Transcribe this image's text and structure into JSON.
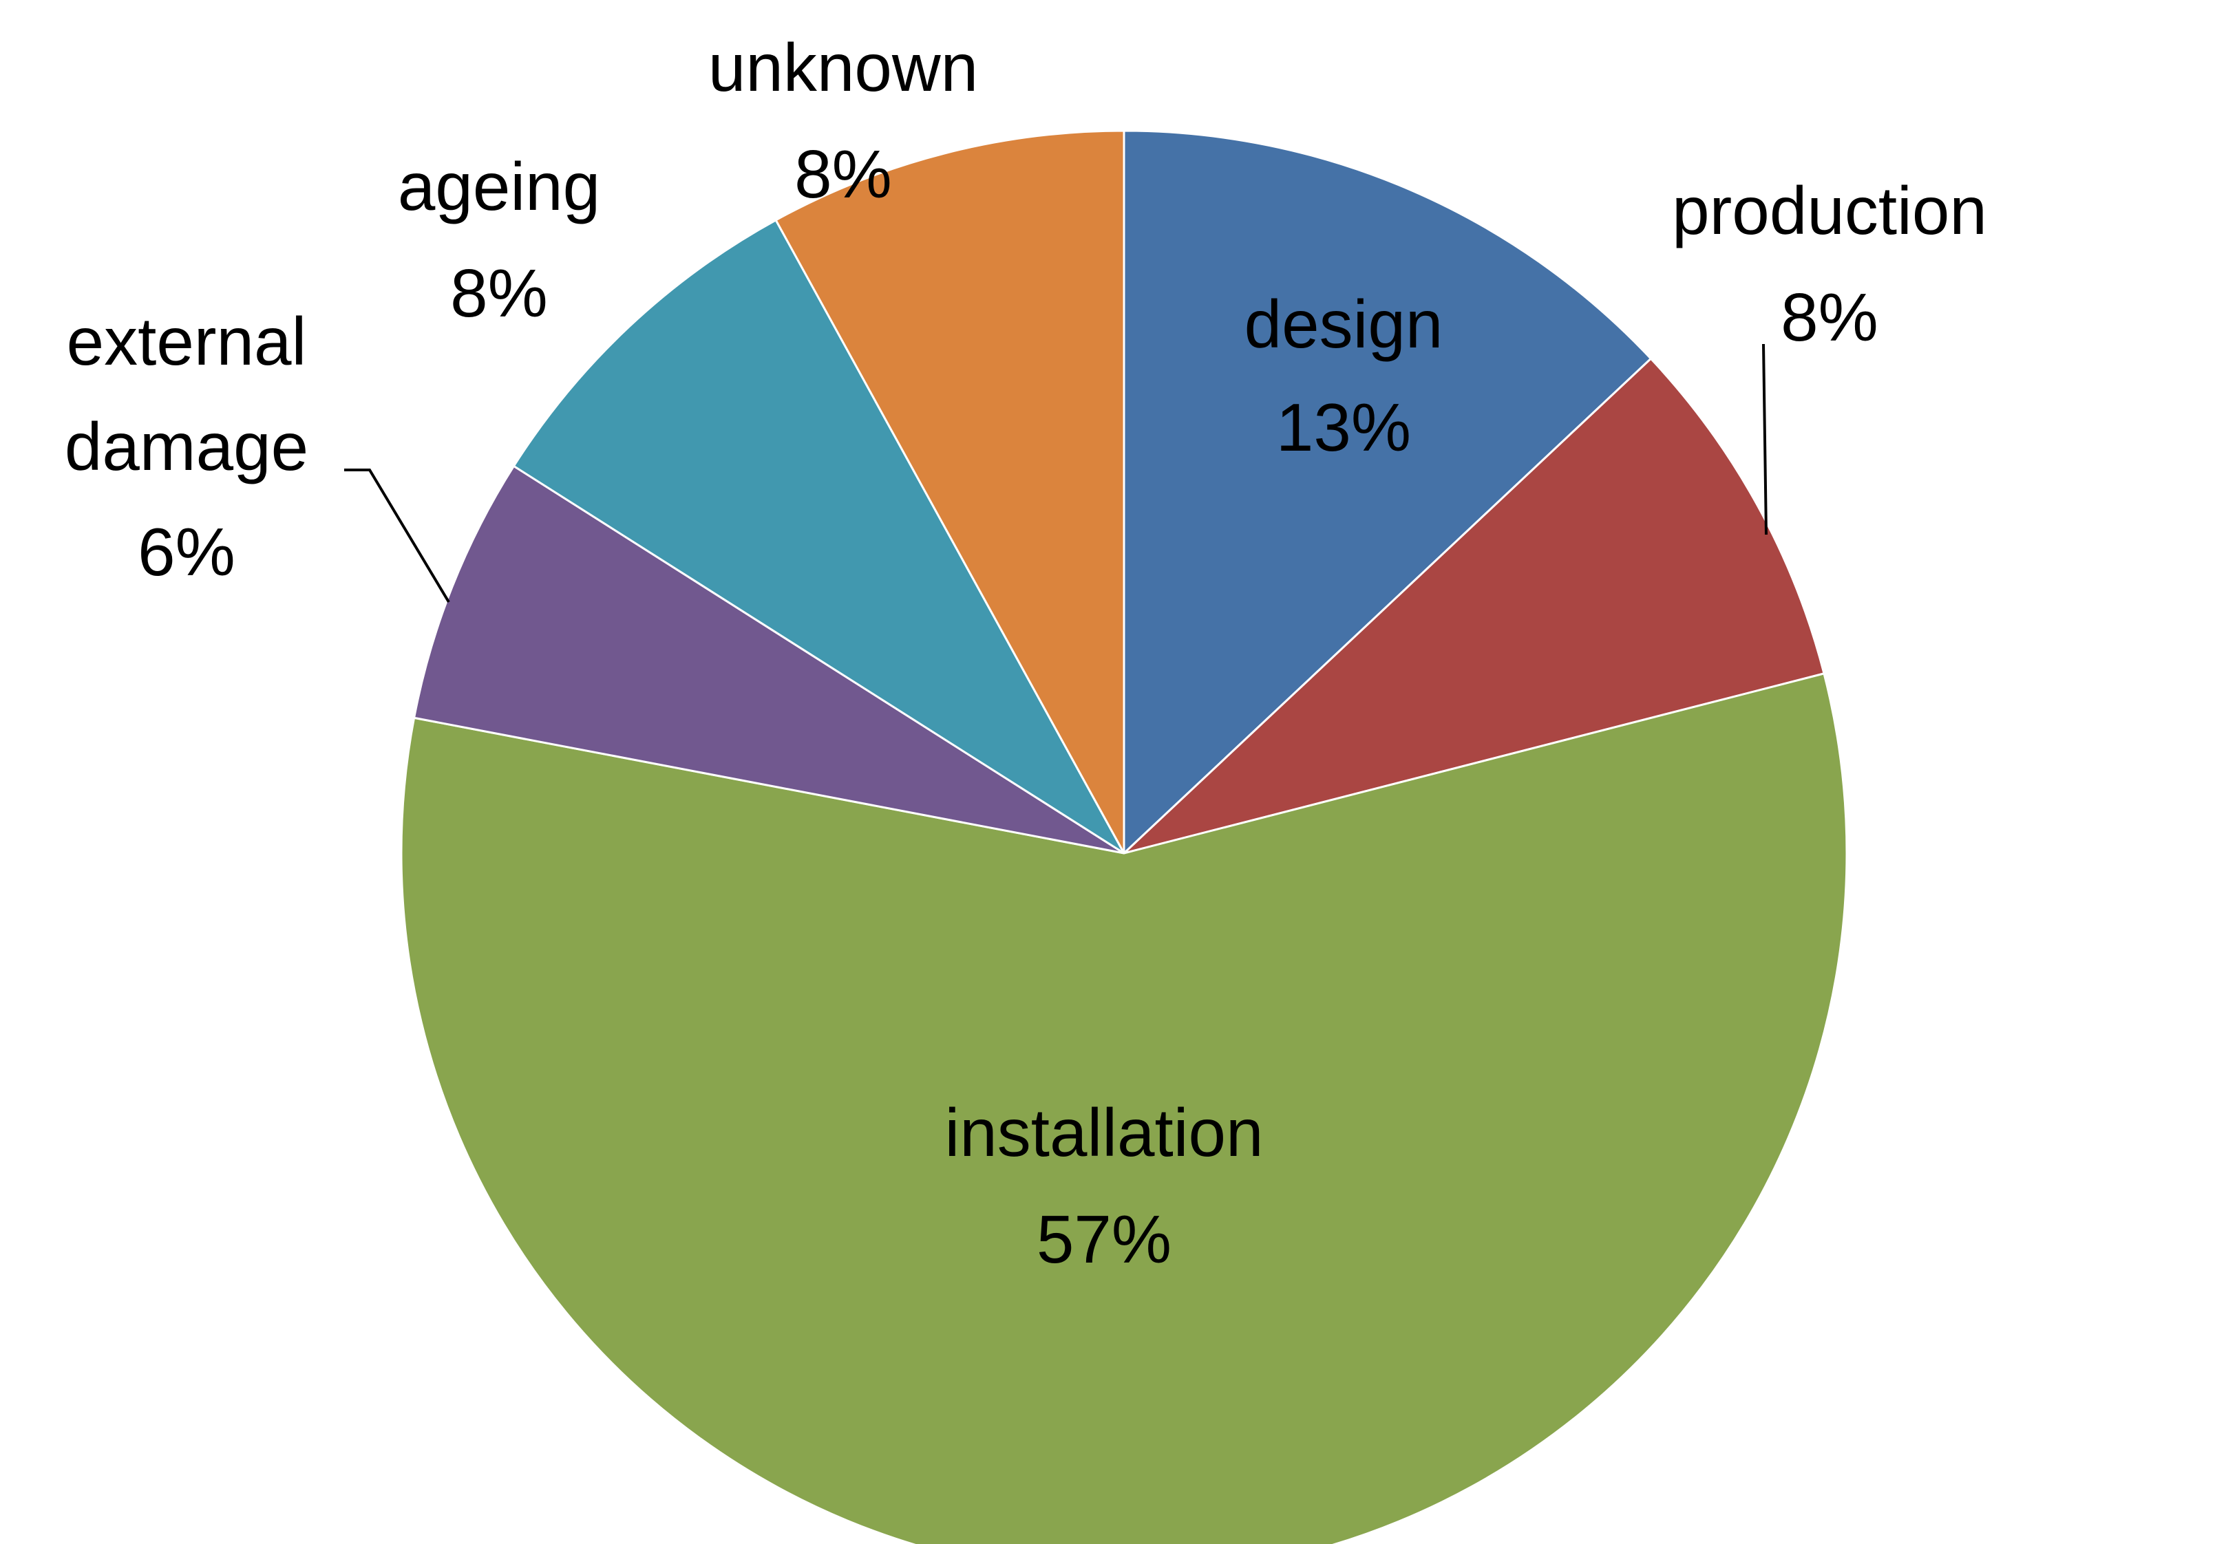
{
  "chart_data": {
    "type": "pie",
    "start_angle": "top",
    "direction": "clockwise",
    "slices": [
      {
        "label": "design",
        "value": 13,
        "value_label": "13%",
        "color": "#4572A7"
      },
      {
        "label": "production",
        "value": 8,
        "value_label": "8%",
        "color": "#AA4643"
      },
      {
        "label": "installation",
        "value": 57,
        "value_label": "57%",
        "color": "#89A54E"
      },
      {
        "label": "external damage",
        "label_lines": [
          "external",
          "damage"
        ],
        "value": 6,
        "value_label": "6%",
        "color": "#71588F"
      },
      {
        "label": "ageing",
        "value": 8,
        "value_label": "8%",
        "color": "#4198AF"
      },
      {
        "label": "unknown",
        "value": 8,
        "value_label": "8%",
        "color": "#DB843D"
      }
    ],
    "legend": "none",
    "data_labels": "category and percentage"
  }
}
